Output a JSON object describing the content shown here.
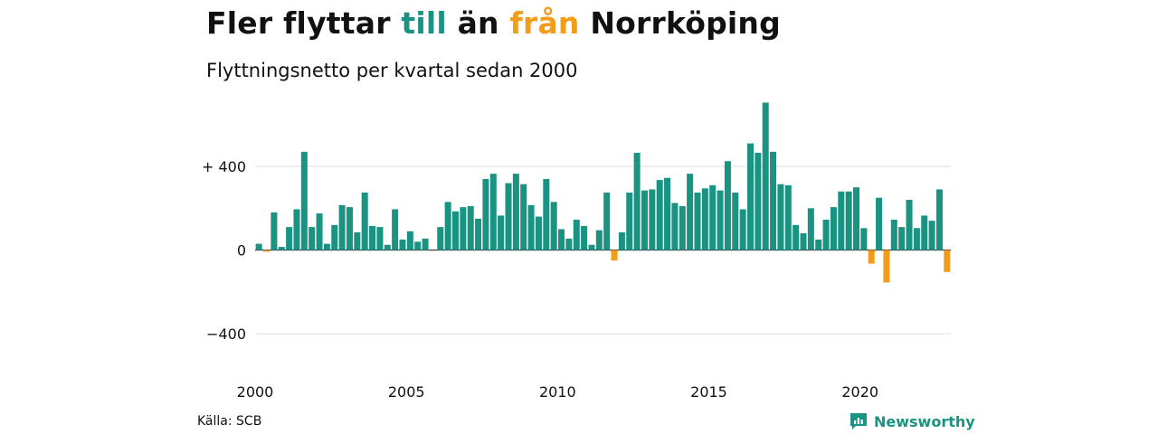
{
  "header": {
    "title_parts": [
      "Fler flyttar ",
      "till",
      " än ",
      "från",
      " Norrköping"
    ],
    "subtitle": "Flyttningsnetto per kvartal sedan 2000"
  },
  "footer": {
    "source": "Källa: SCB",
    "brand": "Newsworthy"
  },
  "colors": {
    "positive": "#1a9382",
    "negative": "#f39c1a",
    "grid": "#dddddd"
  },
  "chart_data": {
    "type": "bar",
    "title": "Fler flyttar till än från Norrköping",
    "subtitle": "Flyttningsnetto per kvartal sedan 2000",
    "xlabel": "",
    "ylabel": "",
    "x_start": "2000 Q1",
    "ylim": [
      -620,
      720
    ],
    "yticks": [
      {
        "value": 400,
        "label": "+ 400"
      },
      {
        "value": 0,
        "label": "0"
      },
      {
        "value": -400,
        "label": "−400"
      }
    ],
    "xticks": [
      {
        "year": 2000,
        "label": "2000"
      },
      {
        "year": 2005,
        "label": "2005"
      },
      {
        "year": 2010,
        "label": "2010"
      },
      {
        "year": 2015,
        "label": "2015"
      },
      {
        "year": 2020,
        "label": "2020"
      }
    ],
    "grid": true,
    "legend": "none",
    "values": [
      30,
      -8,
      180,
      15,
      110,
      195,
      470,
      110,
      175,
      30,
      120,
      215,
      205,
      85,
      275,
      115,
      110,
      25,
      195,
      50,
      90,
      40,
      55,
      0,
      110,
      230,
      185,
      205,
      210,
      150,
      340,
      365,
      165,
      320,
      365,
      315,
      215,
      160,
      340,
      230,
      100,
      55,
      145,
      115,
      25,
      95,
      275,
      -50,
      85,
      275,
      465,
      285,
      290,
      335,
      345,
      225,
      210,
      365,
      275,
      295,
      310,
      285,
      425,
      275,
      195,
      510,
      465,
      705,
      470,
      315,
      310,
      120,
      80,
      200,
      50,
      145,
      205,
      280,
      280,
      300,
      105,
      -65,
      250,
      -155,
      145,
      110,
      240,
      105,
      165,
      140,
      290,
      -105
    ]
  }
}
